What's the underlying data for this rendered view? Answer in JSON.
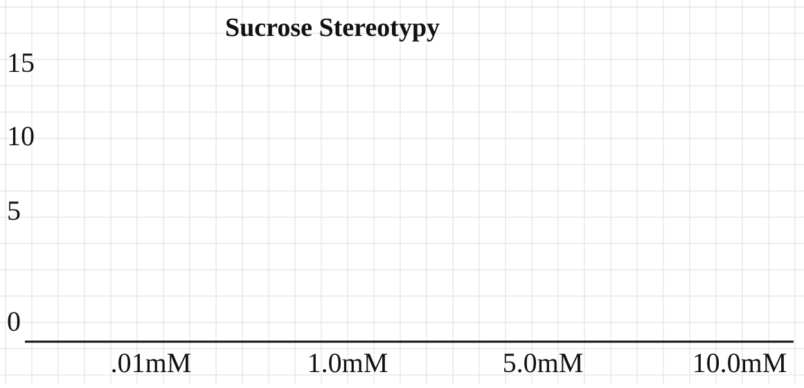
{
  "chart_data": {
    "type": "bar",
    "title": "Sucrose Stereotypy",
    "xlabel": "",
    "ylabel": "",
    "categories": [
      ".01mM",
      "1.0mM",
      "5.0mM",
      "10.0mM"
    ],
    "series": [],
    "ylim": [
      0,
      15
    ],
    "yticks": [
      "0",
      "5",
      "10",
      "15"
    ],
    "grid": true,
    "legend": "none"
  },
  "colors": {
    "grid": "#e2e2e2",
    "axis": "#111111",
    "text": "#111111"
  }
}
